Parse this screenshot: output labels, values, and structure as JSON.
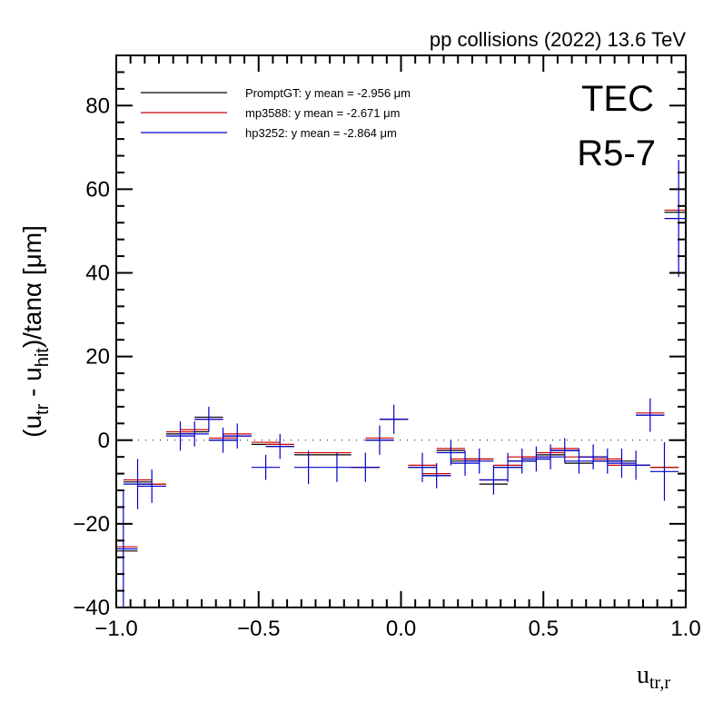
{
  "header": {
    "title": "pp collisions (2022) 13.6 TeV"
  },
  "labels": {
    "detector": "TEC",
    "region": "R5-7"
  },
  "axes": {
    "y_title_parts": [
      "(u",
      "tr",
      " - u",
      "hit",
      ")/tanα [μm]"
    ],
    "x_title_main": "u",
    "x_title_sub": "tr,r"
  },
  "chart_data": {
    "type": "scatter",
    "xlim": [
      -1.0,
      1.0
    ],
    "ylim": [
      -40,
      92
    ],
    "x_ticks": [
      -1.0,
      -0.5,
      0.0,
      0.5,
      1.0
    ],
    "x_tick_labels": [
      "−1.0",
      "−0.5",
      "0.0",
      "0.5",
      "1.0"
    ],
    "y_ticks": [
      -40,
      -20,
      0,
      20,
      40,
      60,
      80
    ],
    "y_tick_labels": [
      "−40",
      "−20",
      "0",
      "20",
      "40",
      "60",
      "80"
    ],
    "bin_half_width": 0.05,
    "legend": {
      "position": "top-left"
    },
    "series": [
      {
        "name": "PromptGT: y mean = -2.956 μm",
        "color": "#000000",
        "x": [
          -0.975,
          -0.925,
          -0.875,
          -0.775,
          -0.725,
          -0.675,
          -0.625,
          -0.575,
          -0.475,
          -0.425,
          -0.325,
          -0.225,
          -0.125,
          -0.075,
          -0.025,
          0.075,
          0.125,
          0.175,
          0.225,
          0.275,
          0.325,
          0.375,
          0.425,
          0.475,
          0.525,
          0.575,
          0.625,
          0.675,
          0.725,
          0.775,
          0.825,
          0.875,
          0.925,
          0.975
        ],
        "y": [
          -26.5,
          -10.0,
          -10.5,
          1.5,
          2.0,
          5.5,
          0.0,
          1.0,
          -1.0,
          -1.5,
          -3.5,
          -3.5,
          -6.5,
          0.0,
          5.0,
          -6.5,
          -8.5,
          -2.5,
          -5.0,
          -4.5,
          -10.5,
          -6.5,
          -5.0,
          -4.5,
          -3.5,
          -2.5,
          -5.5,
          -4.0,
          -5.0,
          -5.0,
          -6.0,
          6.0,
          -6.5,
          54.5
        ],
        "yerr": [
          0,
          0,
          0,
          0,
          0,
          0,
          0,
          0,
          0,
          0,
          0,
          0,
          0,
          0,
          0,
          0,
          0,
          0,
          0,
          0,
          0,
          0,
          0,
          0,
          0,
          0,
          0,
          0,
          0,
          0,
          0,
          0,
          0,
          0
        ]
      },
      {
        "name": "mp3588: y mean = -2.671 μm",
        "color": "#cc0000",
        "x": [
          -0.975,
          -0.925,
          -0.875,
          -0.775,
          -0.725,
          -0.675,
          -0.625,
          -0.575,
          -0.475,
          -0.425,
          -0.325,
          -0.225,
          -0.125,
          -0.075,
          -0.025,
          0.075,
          0.125,
          0.175,
          0.225,
          0.275,
          0.325,
          0.375,
          0.425,
          0.475,
          0.525,
          0.575,
          0.625,
          0.675,
          0.725,
          0.775,
          0.825,
          0.875,
          0.925,
          0.975
        ],
        "y": [
          -25.5,
          -9.5,
          -10.5,
          2.0,
          2.5,
          5.0,
          0.5,
          1.5,
          -0.5,
          -1.0,
          -3.0,
          -3.0,
          -6.5,
          0.5,
          5.0,
          -6.0,
          -8.0,
          -2.0,
          -4.5,
          -4.5,
          -9.5,
          -6.0,
          -4.0,
          -4.0,
          -3.0,
          -2.0,
          -4.0,
          -4.0,
          -4.5,
          -6.0,
          -6.0,
          6.5,
          -6.5,
          55.0
        ],
        "yerr": [
          0,
          0,
          0,
          0,
          0,
          0,
          0,
          0,
          0,
          0,
          0,
          0,
          0,
          0,
          0,
          0,
          0,
          0,
          0,
          0,
          0,
          0,
          0,
          0,
          0,
          0,
          0,
          0,
          0,
          0,
          0,
          0,
          0,
          0
        ]
      },
      {
        "name": "hp3252: y mean = -2.864 μm",
        "color": "#0000cc",
        "x": [
          -0.975,
          -0.925,
          -0.875,
          -0.775,
          -0.725,
          -0.675,
          -0.625,
          -0.575,
          -0.475,
          -0.425,
          -0.325,
          -0.225,
          -0.125,
          -0.075,
          -0.025,
          0.075,
          0.125,
          0.175,
          0.225,
          0.275,
          0.325,
          0.375,
          0.425,
          0.475,
          0.525,
          0.575,
          0.625,
          0.675,
          0.725,
          0.775,
          0.825,
          0.875,
          0.925,
          0.975
        ],
        "y": [
          -26.0,
          -10.5,
          -11.0,
          1.0,
          1.5,
          5.0,
          0.0,
          1.0,
          -6.5,
          -1.5,
          -6.5,
          -6.5,
          -6.5,
          0.0,
          5.0,
          -6.5,
          -8.5,
          -3.0,
          -5.5,
          -5.0,
          -9.5,
          -6.5,
          -5.0,
          -4.5,
          -4.0,
          -2.5,
          -5.0,
          -4.0,
          -5.0,
          -5.5,
          -6.0,
          6.0,
          -7.5,
          53.0
        ],
        "yerr": [
          14,
          6,
          4,
          3.5,
          3,
          3,
          3,
          3,
          3,
          3,
          4,
          3.5,
          3.5,
          3.5,
          3.5,
          3.5,
          3,
          3,
          3,
          3,
          3.5,
          3.5,
          3,
          3,
          3,
          3,
          3,
          3,
          3,
          3.5,
          3.5,
          4,
          7,
          14
        ]
      }
    ]
  }
}
